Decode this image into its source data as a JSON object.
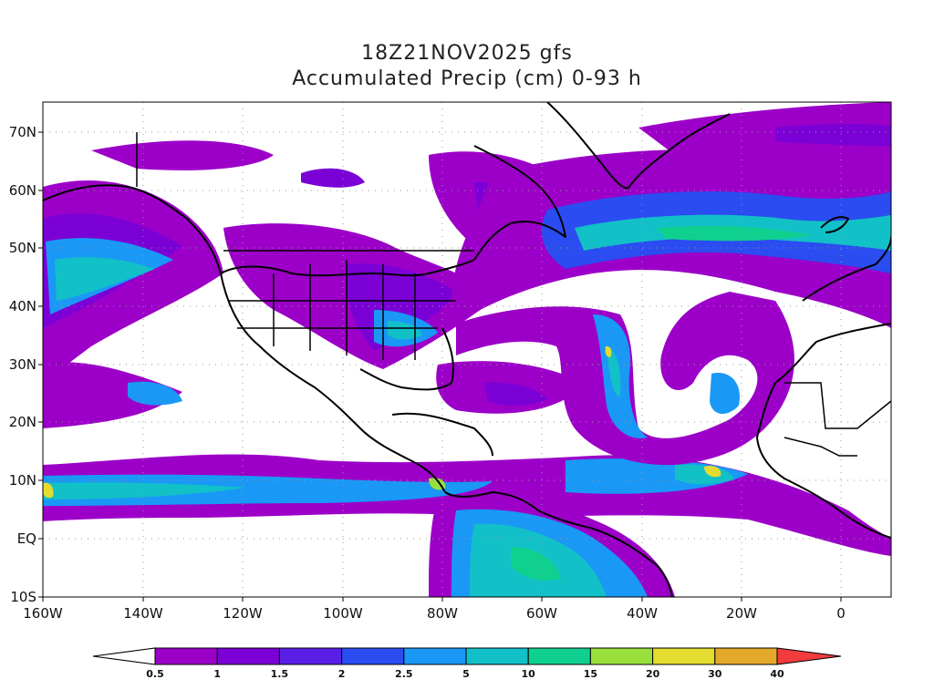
{
  "header": {
    "title": "18Z21NOV2025 gfs",
    "subtitle": "Accumulated Precip (cm) 0-93 h"
  },
  "axes": {
    "lat_labels": [
      "70N",
      "60N",
      "50N",
      "40N",
      "30N",
      "20N",
      "10N",
      "EQ",
      "10S"
    ],
    "lon_labels": [
      "160W",
      "140W",
      "120W",
      "100W",
      "80W",
      "60W",
      "40W",
      "20W",
      "0"
    ],
    "lat_range": [
      -10,
      75
    ],
    "lon_range": [
      -160,
      10
    ]
  },
  "colorbar": {
    "levels": [
      "0.5",
      "1",
      "1.5",
      "2",
      "2.5",
      "5",
      "10",
      "15",
      "20",
      "30",
      "40"
    ],
    "colors": [
      "#9c00c8",
      "#7a00d6",
      "#5a1ee6",
      "#2a4cf0",
      "#1a98f5",
      "#12c0c8",
      "#10d090",
      "#9ae03c",
      "#e4dc30",
      "#e4a82a",
      "#f07a28",
      "#f03c3c"
    ]
  },
  "colors": {
    "land_outline": "#000000",
    "grid": "#999999",
    "background": "#ffffff"
  }
}
